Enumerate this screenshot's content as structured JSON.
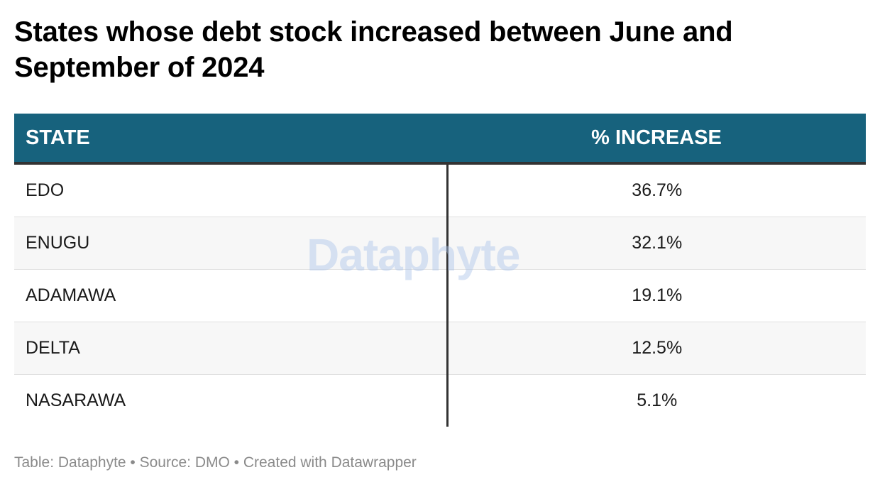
{
  "header": {
    "title": "States whose debt stock increased between June and September of 2024"
  },
  "colors": {
    "header_bg": "#17627d",
    "header_text": "#ffffff",
    "divider": "#333333",
    "alt_row": "#f7f7f7",
    "footer_text": "#8a8a8a"
  },
  "chart_data": {
    "type": "table",
    "columns": [
      "STATE",
      "% INCREASE"
    ],
    "rows": [
      {
        "state": "EDO",
        "pct": "36.7%"
      },
      {
        "state": "ENUGU",
        "pct": "32.1%"
      },
      {
        "state": "ADAMAWA",
        "pct": "19.1%"
      },
      {
        "state": "DELTA",
        "pct": "12.5%"
      },
      {
        "state": "NASARAWA",
        "pct": "5.1%"
      }
    ]
  },
  "watermark": {
    "text": "Dataphyte"
  },
  "footer": {
    "text": "Table: Dataphyte • Source: DMO • Created with Datawrapper"
  }
}
